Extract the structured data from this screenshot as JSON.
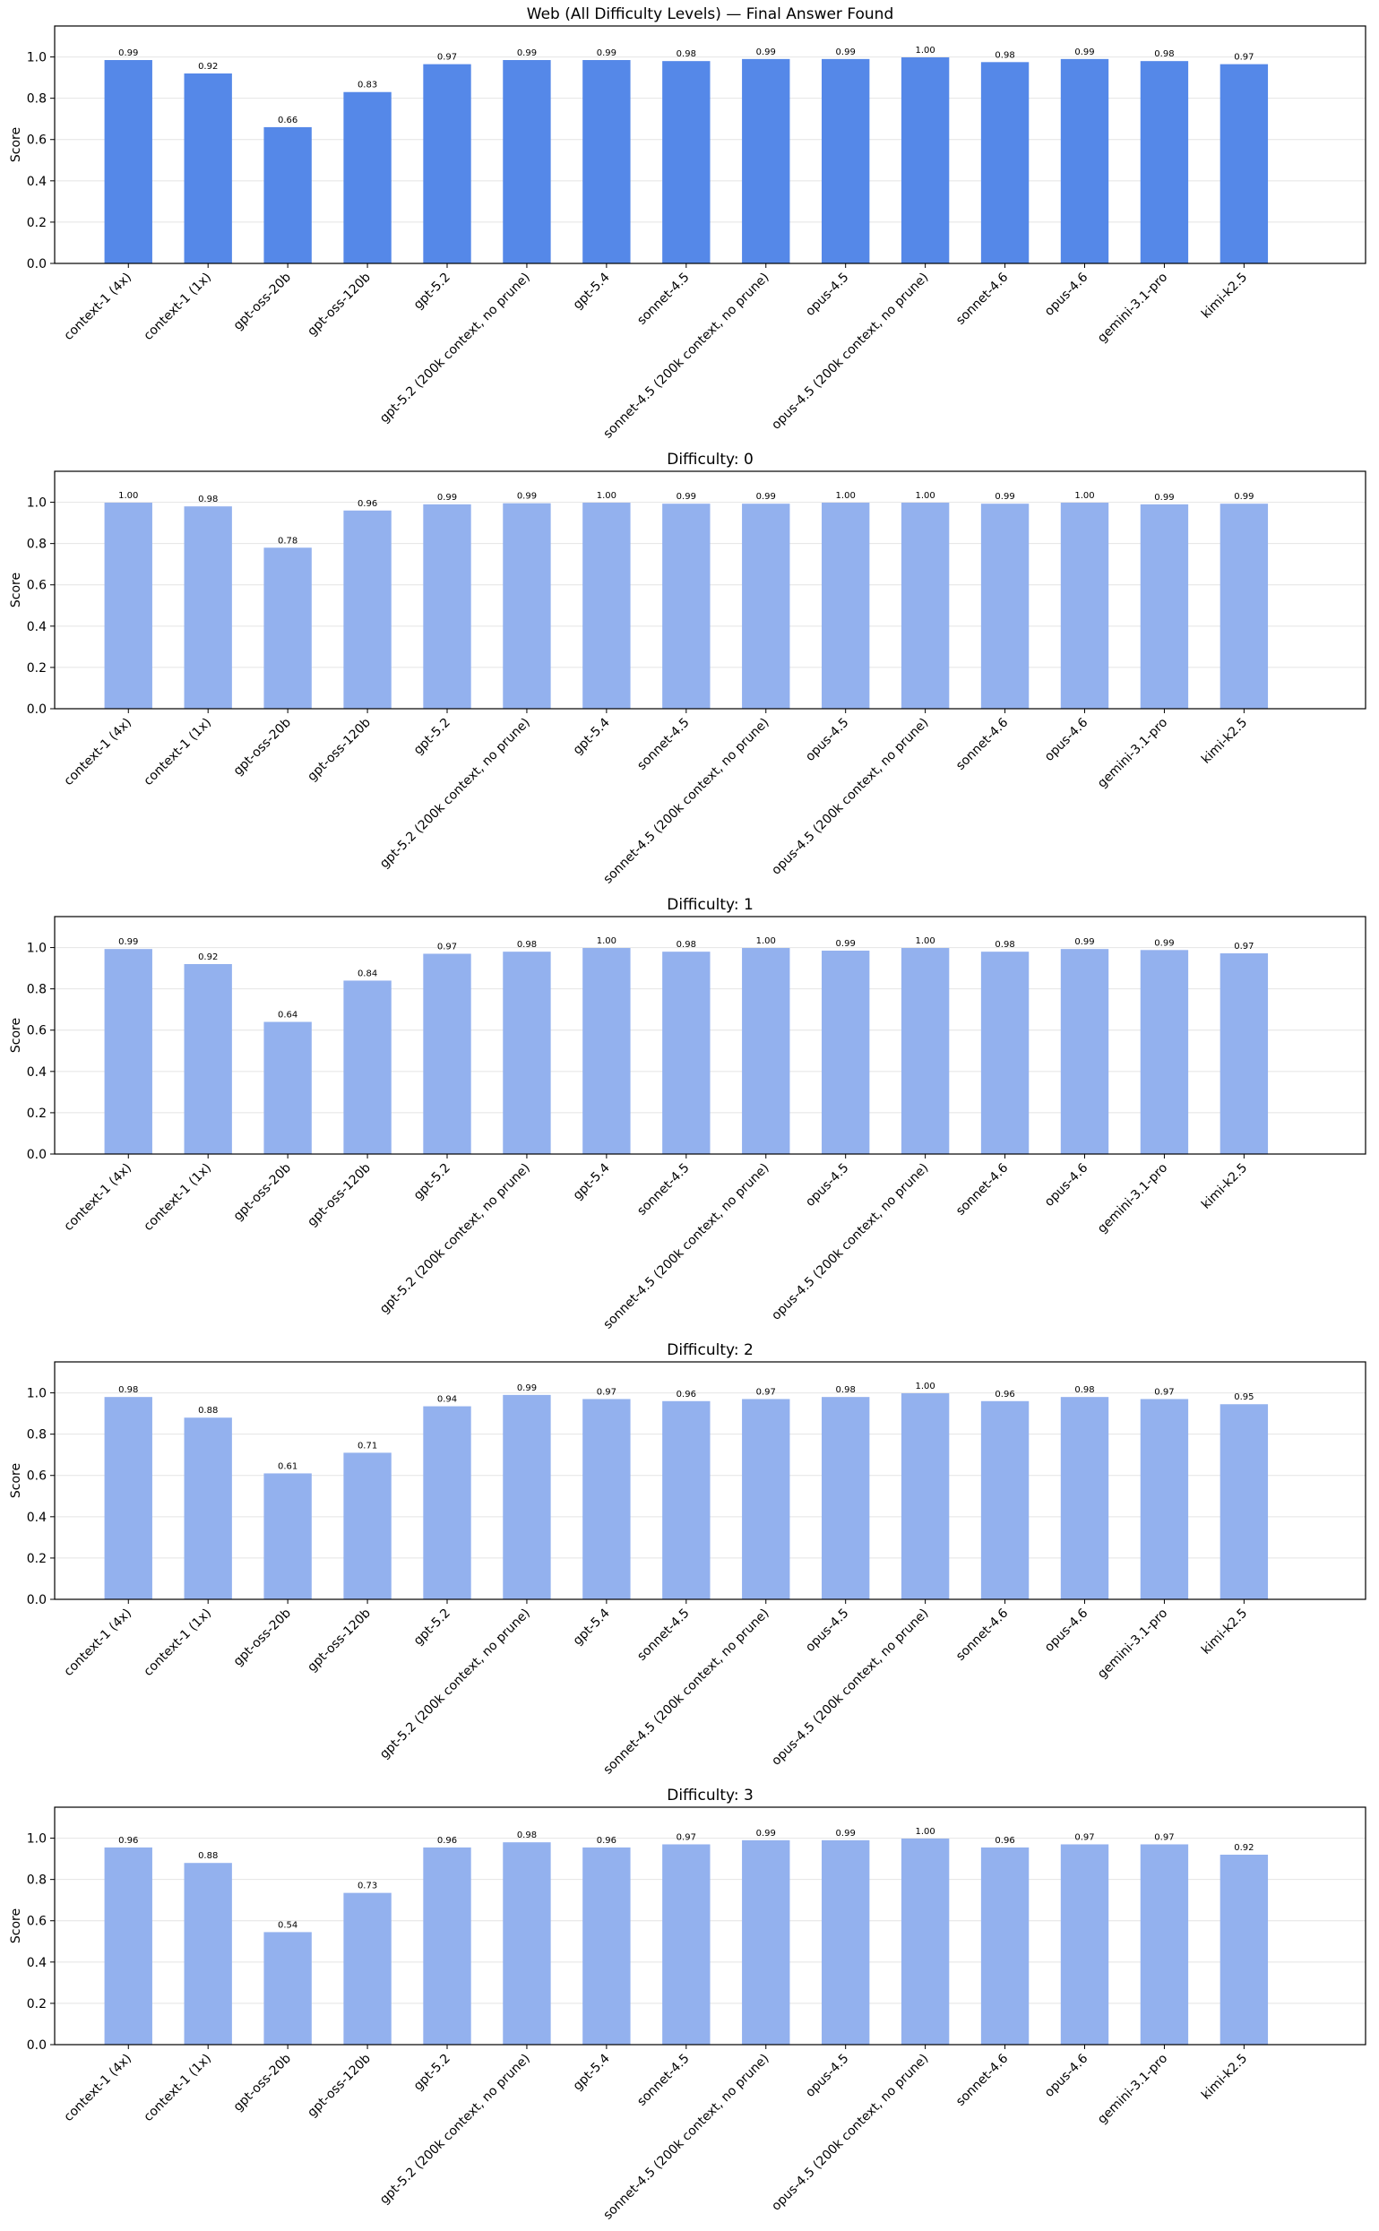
{
  "chart_data": [
    {
      "type": "bar",
      "title": "Web (All Difficulty Levels) — Final Answer Found",
      "xlabel": "",
      "ylabel": "Score",
      "ylim": [
        0,
        1.15
      ],
      "yticks": [
        0.0,
        0.2,
        0.4,
        0.6,
        0.8,
        1.0
      ],
      "ytick_labels": [
        "0.0",
        "0.2",
        "0.4",
        "0.6",
        "0.8",
        "1.0"
      ],
      "grid": "horizontal",
      "bar_color": "#5588e8",
      "categories": [
        "context-1 (4x)",
        "context-1 (1x)",
        "gpt-oss-20b",
        "gpt-oss-120b",
        "gpt-5.2",
        "gpt-5.2 (200k context, no prune)",
        "gpt-5.4",
        "sonnet-4.5",
        "sonnet-4.5 (200k context, no prune)",
        "opus-4.5",
        "opus-4.5 (200k context, no prune)",
        "sonnet-4.6",
        "opus-4.6",
        "gemini-3.1-pro",
        "kimi-k2.5"
      ],
      "values": [
        0.985,
        0.92,
        0.66,
        0.83,
        0.965,
        0.985,
        0.985,
        0.98,
        0.99,
        0.99,
        0.998,
        0.975,
        0.99,
        0.98,
        0.965
      ],
      "value_labels": [
        "0.99",
        "0.92",
        "0.66",
        "0.83",
        "0.97",
        "0.99",
        "0.99",
        "0.98",
        "0.99",
        "0.99",
        "1.00",
        "0.98",
        "0.99",
        "0.98",
        "0.97"
      ]
    },
    {
      "type": "bar",
      "title": "Difficulty: 0",
      "xlabel": "",
      "ylabel": "Score",
      "ylim": [
        0,
        1.15
      ],
      "yticks": [
        0.0,
        0.2,
        0.4,
        0.6,
        0.8,
        1.0
      ],
      "ytick_labels": [
        "0.0",
        "0.2",
        "0.4",
        "0.6",
        "0.8",
        "1.0"
      ],
      "grid": "horizontal",
      "bar_color": "#93b1ee",
      "categories": [
        "context-1 (4x)",
        "context-1 (1x)",
        "gpt-oss-20b",
        "gpt-oss-120b",
        "gpt-5.2",
        "gpt-5.2 (200k context, no prune)",
        "gpt-5.4",
        "sonnet-4.5",
        "sonnet-4.5 (200k context, no prune)",
        "opus-4.5",
        "opus-4.5 (200k context, no prune)",
        "sonnet-4.6",
        "opus-4.6",
        "gemini-3.1-pro",
        "kimi-k2.5"
      ],
      "values": [
        0.998,
        0.98,
        0.78,
        0.96,
        0.99,
        0.995,
        0.998,
        0.993,
        0.993,
        0.998,
        0.998,
        0.993,
        0.998,
        0.99,
        0.993
      ],
      "value_labels": [
        "1.00",
        "0.98",
        "0.78",
        "0.96",
        "0.99",
        "0.99",
        "1.00",
        "0.99",
        "0.99",
        "1.00",
        "1.00",
        "0.99",
        "1.00",
        "0.99",
        "0.99"
      ]
    },
    {
      "type": "bar",
      "title": "Difficulty: 1",
      "xlabel": "",
      "ylabel": "Score",
      "ylim": [
        0,
        1.15
      ],
      "yticks": [
        0.0,
        0.2,
        0.4,
        0.6,
        0.8,
        1.0
      ],
      "ytick_labels": [
        "0.0",
        "0.2",
        "0.4",
        "0.6",
        "0.8",
        "1.0"
      ],
      "grid": "horizontal",
      "bar_color": "#93b1ee",
      "categories": [
        "context-1 (4x)",
        "context-1 (1x)",
        "gpt-oss-20b",
        "gpt-oss-120b",
        "gpt-5.2",
        "gpt-5.2 (200k context, no prune)",
        "gpt-5.4",
        "sonnet-4.5",
        "sonnet-4.5 (200k context, no prune)",
        "opus-4.5",
        "opus-4.5 (200k context, no prune)",
        "sonnet-4.6",
        "opus-4.6",
        "gemini-3.1-pro",
        "kimi-k2.5"
      ],
      "values": [
        0.993,
        0.92,
        0.64,
        0.84,
        0.97,
        0.98,
        0.998,
        0.98,
        0.998,
        0.985,
        0.998,
        0.98,
        0.993,
        0.988,
        0.972
      ],
      "value_labels": [
        "0.99",
        "0.92",
        "0.64",
        "0.84",
        "0.97",
        "0.98",
        "1.00",
        "0.98",
        "1.00",
        "0.99",
        "1.00",
        "0.98",
        "0.99",
        "0.99",
        "0.97"
      ]
    },
    {
      "type": "bar",
      "title": "Difficulty: 2",
      "xlabel": "",
      "ylabel": "Score",
      "ylim": [
        0,
        1.15
      ],
      "yticks": [
        0.0,
        0.2,
        0.4,
        0.6,
        0.8,
        1.0
      ],
      "ytick_labels": [
        "0.0",
        "0.2",
        "0.4",
        "0.6",
        "0.8",
        "1.0"
      ],
      "grid": "horizontal",
      "bar_color": "#93b1ee",
      "categories": [
        "context-1 (4x)",
        "context-1 (1x)",
        "gpt-oss-20b",
        "gpt-oss-120b",
        "gpt-5.2",
        "gpt-5.2 (200k context, no prune)",
        "gpt-5.4",
        "sonnet-4.5",
        "sonnet-4.5 (200k context, no prune)",
        "opus-4.5",
        "opus-4.5 (200k context, no prune)",
        "sonnet-4.6",
        "opus-4.6",
        "gemini-3.1-pro",
        "kimi-k2.5"
      ],
      "values": [
        0.98,
        0.88,
        0.61,
        0.71,
        0.935,
        0.99,
        0.97,
        0.96,
        0.97,
        0.98,
        0.998,
        0.96,
        0.98,
        0.97,
        0.945
      ],
      "value_labels": [
        "0.98",
        "0.88",
        "0.61",
        "0.71",
        "0.94",
        "0.99",
        "0.97",
        "0.96",
        "0.97",
        "0.98",
        "1.00",
        "0.96",
        "0.98",
        "0.97",
        "0.95"
      ]
    },
    {
      "type": "bar",
      "title": "Difficulty: 3",
      "xlabel": "",
      "ylabel": "Score",
      "ylim": [
        0,
        1.15
      ],
      "yticks": [
        0.0,
        0.2,
        0.4,
        0.6,
        0.8,
        1.0
      ],
      "ytick_labels": [
        "0.0",
        "0.2",
        "0.4",
        "0.6",
        "0.8",
        "1.0"
      ],
      "grid": "horizontal",
      "bar_color": "#93b1ee",
      "categories": [
        "context-1 (4x)",
        "context-1 (1x)",
        "gpt-oss-20b",
        "gpt-oss-120b",
        "gpt-5.2",
        "gpt-5.2 (200k context, no prune)",
        "gpt-5.4",
        "sonnet-4.5",
        "sonnet-4.5 (200k context, no prune)",
        "opus-4.5",
        "opus-4.5 (200k context, no prune)",
        "sonnet-4.6",
        "opus-4.6",
        "gemini-3.1-pro",
        "kimi-k2.5"
      ],
      "values": [
        0.955,
        0.88,
        0.545,
        0.735,
        0.955,
        0.98,
        0.955,
        0.97,
        0.99,
        0.99,
        0.998,
        0.955,
        0.97,
        0.97,
        0.92
      ],
      "value_labels": [
        "0.96",
        "0.88",
        "0.54",
        "0.73",
        "0.96",
        "0.98",
        "0.96",
        "0.97",
        "0.99",
        "0.99",
        "1.00",
        "0.96",
        "0.97",
        "0.97",
        "0.92"
      ]
    }
  ]
}
